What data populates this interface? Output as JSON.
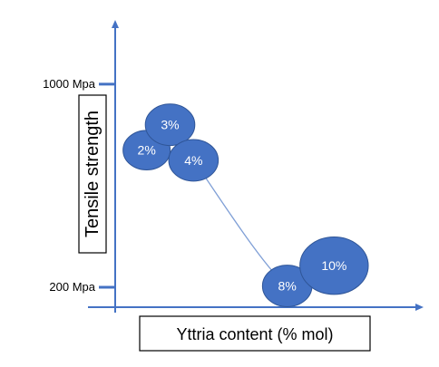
{
  "chart_data": {
    "type": "scatter",
    "title": "",
    "xlabel": "Yttria content (% mol)",
    "ylabel": "Tensile strength",
    "y_ticks": [
      {
        "value": 1000,
        "label": "1000 Mpa"
      },
      {
        "value": 200,
        "label": "200 Mpa"
      }
    ],
    "ylim": [
      100,
      1260
    ],
    "xlim": [
      0,
      12
    ],
    "x_tick_labels_shown": false,
    "grid": false,
    "connected_with_smooth_line": true,
    "points": [
      {
        "label": "2%",
        "x": 2,
        "y": 740,
        "bubble_size": 1.0
      },
      {
        "label": "3%",
        "x": 3,
        "y": 840,
        "bubble_size": 1.05
      },
      {
        "label": "4%",
        "x": 4,
        "y": 700,
        "bubble_size": 1.05
      },
      {
        "label": "8%",
        "x": 8,
        "y": 205,
        "bubble_size": 1.05
      },
      {
        "label": "10%",
        "x": 10,
        "y": 285,
        "bubble_size": 1.45
      }
    ],
    "colors": {
      "axis": "#4472C4",
      "bubble_fill": "#4472C4",
      "bubble_stroke": "#2F5597",
      "connector": "#7F9FD6",
      "bubble_text": "#FFFFFF",
      "box_border": "#000000"
    }
  }
}
